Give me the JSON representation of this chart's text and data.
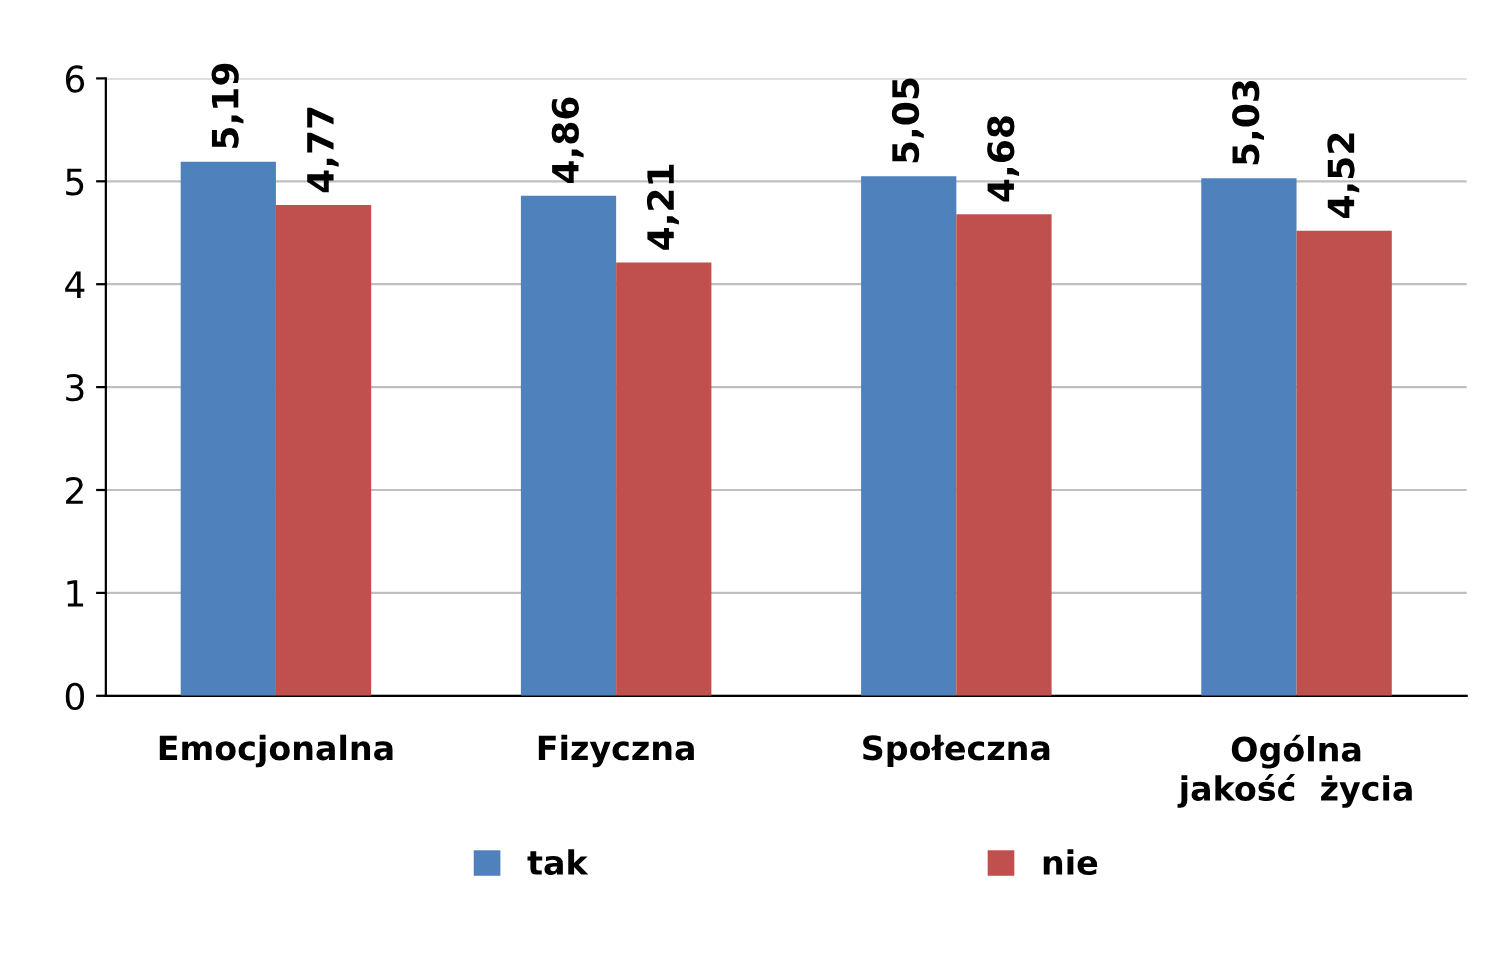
{
  "chart_data": {
    "type": "bar",
    "categories": [
      "Emocjonalna",
      "Fizyczna",
      "Społeczna",
      "Ogólna\njakość  życia"
    ],
    "series": [
      {
        "name": "tak",
        "color": "#4f81bd",
        "values": [
          5.19,
          4.86,
          5.05,
          5.03
        ],
        "value_labels": [
          "5,19",
          "4,86",
          "5,05",
          "5,03"
        ]
      },
      {
        "name": "nie",
        "color": "#c0504d",
        "values": [
          4.77,
          4.21,
          4.68,
          4.52
        ],
        "value_labels": [
          "4,77",
          "4,21",
          "4,68",
          "4,52"
        ]
      }
    ],
    "ylim": [
      0,
      6
    ],
    "yticks": [
      0,
      1,
      2,
      3,
      4,
      5,
      6
    ],
    "grid": "y",
    "legend": "bottom"
  }
}
